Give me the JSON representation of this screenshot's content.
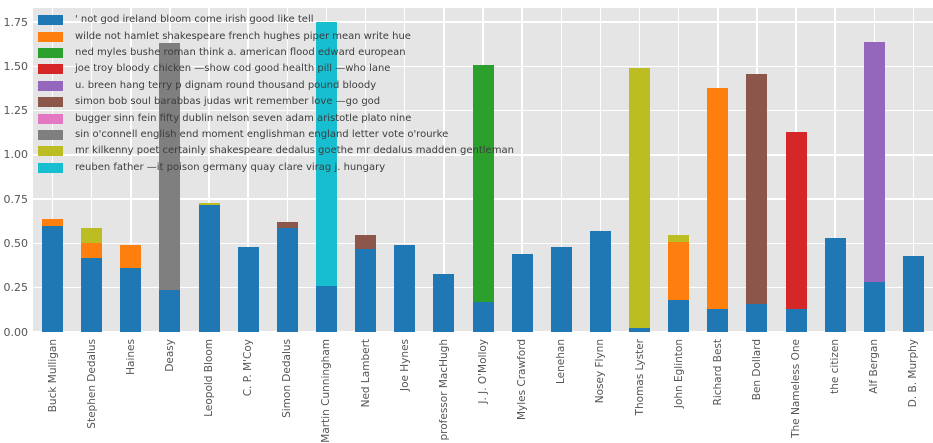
{
  "figure": {
    "background": "#ffffff",
    "plot_background": "#e5e5e5",
    "grid_color": "#ffffff",
    "tick_label_color": "#555555",
    "legend_text_color": "#3d3d3d"
  },
  "chart_data": {
    "type": "bar",
    "stacked": true,
    "orientation": "vertical",
    "title": "",
    "xlabel": "",
    "ylabel": "",
    "grid": true,
    "legend_position": "upper left",
    "ylim": [
      0,
      1.83
    ],
    "yticks": [
      "0.00",
      "0.25",
      "0.50",
      "0.75",
      "1.00",
      "1.25",
      "1.50",
      "1.75"
    ],
    "ytick_values": [
      0,
      0.25,
      0.5,
      0.75,
      1.0,
      1.25,
      1.5,
      1.75
    ],
    "categories": [
      "Buck Mulligan",
      "Stephen Dedalus",
      "Haines",
      "Deasy",
      "Leopold Bloom",
      "C. P. M'Coy",
      "Simon Dedalus",
      "Martin Cunningham",
      "Ned Lambert",
      "Joe Hynes",
      "professor MacHugh",
      "J. J. O'Molloy",
      "Myles Crawford",
      "Lenehan",
      "Nosey Flynn",
      "Thomas Lyster",
      "John Eglinton",
      "Richard Best",
      "Ben Dollard",
      "The Nameless One",
      "the citizen",
      "Alf Bergan",
      "D. B. Murphy"
    ],
    "series": [
      {
        "name": "' not god ireland bloom come irish good like tell",
        "color": "#1f77b4",
        "values": [
          0.6,
          0.42,
          0.36,
          0.24,
          0.72,
          0.48,
          0.59,
          0.26,
          0.47,
          0.49,
          0.33,
          0.17,
          0.44,
          0.48,
          0.57,
          0.02,
          0.18,
          0.13,
          0.16,
          0.13,
          0.53,
          0.28,
          0.43
        ]
      },
      {
        "name": "wilde not hamlet shakespeare french hughes piper mean write hue",
        "color": "#ff7f0e",
        "values": [
          0.04,
          0.08,
          0.13,
          0,
          0,
          0,
          0,
          0,
          0,
          0,
          0,
          0,
          0,
          0,
          0,
          0,
          0.33,
          1.25,
          0,
          0,
          0,
          0,
          0
        ]
      },
      {
        "name": "ned myles bushe roman think a. american flood edward european",
        "color": "#2ca02c",
        "values": [
          0,
          0,
          0,
          0,
          0,
          0,
          0,
          0,
          0,
          0,
          0,
          1.34,
          0,
          0,
          0,
          0,
          0,
          0,
          0,
          0,
          0,
          0,
          0
        ]
      },
      {
        "name": "joe troy bloody chicken —show cod good health pill —who lane",
        "color": "#d62728",
        "values": [
          0,
          0,
          0,
          0,
          0,
          0,
          0,
          0,
          0,
          0,
          0,
          0,
          0,
          0,
          0,
          0,
          0,
          0,
          0,
          1.0,
          0,
          0,
          0
        ]
      },
      {
        "name": "u. breen hang terry p dignam round thousand pound bloody",
        "color": "#9467bd",
        "values": [
          0,
          0,
          0,
          0,
          0,
          0,
          0,
          0,
          0,
          0,
          0,
          0,
          0,
          0,
          0,
          0,
          0,
          0,
          0,
          0,
          0,
          1.36,
          0
        ]
      },
      {
        "name": "simon bob soul barabbas judas writ remember love —go god",
        "color": "#8c564b",
        "values": [
          0,
          0,
          0,
          0,
          0,
          0,
          0.03,
          0,
          0.08,
          0,
          0,
          0,
          0,
          0,
          0,
          0,
          0,
          0,
          1.3,
          0,
          0,
          0,
          0
        ]
      },
      {
        "name": "bugger sinn fein fifty dublin nelson seven adam aristotle plato nine",
        "color": "#e377c2",
        "values": [
          0,
          0,
          0,
          0,
          0,
          0,
          0,
          0,
          0,
          0,
          0,
          0,
          0,
          0,
          0,
          0,
          0,
          0,
          0,
          0,
          0,
          0,
          0
        ]
      },
      {
        "name": "sin o'connell english end moment englishman england letter vote o'rourke",
        "color": "#7f7f7f",
        "values": [
          0,
          0,
          0,
          1.39,
          0,
          0,
          0,
          0,
          0,
          0,
          0,
          0,
          0,
          0,
          0,
          0,
          0,
          0,
          0,
          0,
          0,
          0,
          0
        ]
      },
      {
        "name": "mr kilkenny poet certainly shakespeare dedalus goethe mr dedalus madden gentleman",
        "color": "#bcbd22",
        "values": [
          0,
          0.09,
          0,
          0,
          0.01,
          0,
          0,
          0,
          0,
          0,
          0,
          0,
          0,
          0,
          0,
          1.47,
          0.04,
          0,
          0,
          0,
          0,
          0,
          0
        ]
      },
      {
        "name": "reuben father —it poison germany quay clare virag j. hungary",
        "color": "#17becf",
        "values": [
          0,
          0,
          0,
          0,
          0,
          0,
          0,
          1.49,
          0,
          0,
          0,
          0,
          0,
          0,
          0,
          0,
          0,
          0,
          0,
          0,
          0,
          0,
          0
        ]
      }
    ]
  }
}
